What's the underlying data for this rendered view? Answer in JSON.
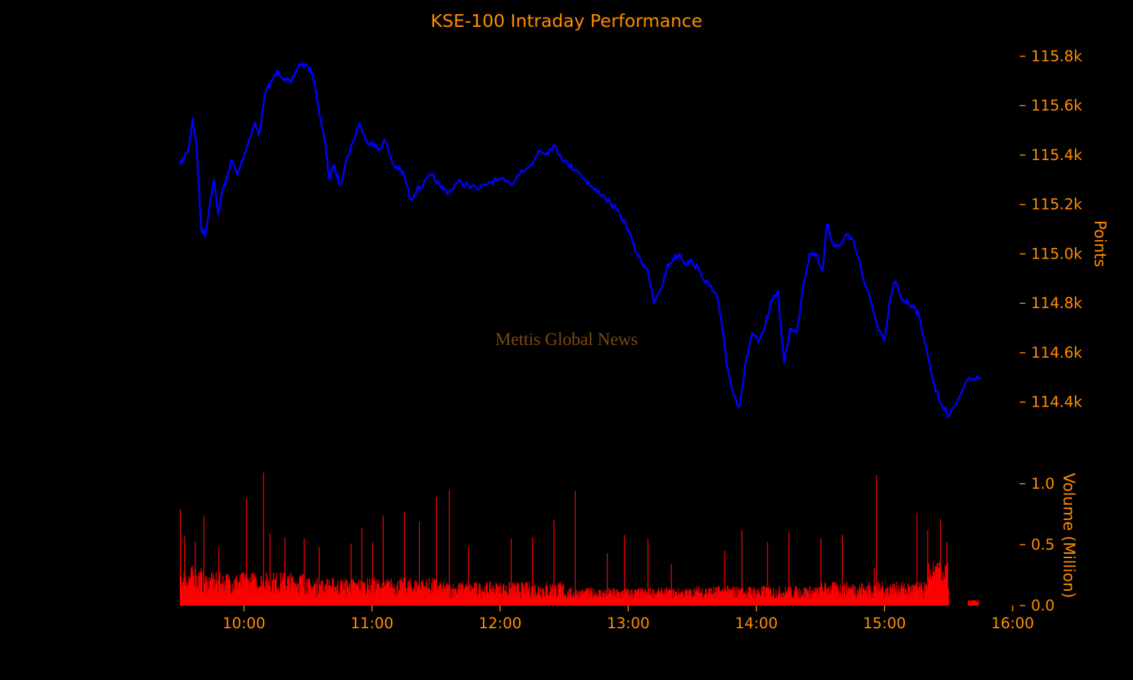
{
  "colors": {
    "background": "#000000",
    "text": "#FF8C00",
    "price_line": "#0000FF",
    "volume_bars": "#FF0000",
    "watermark": "#7A4A12"
  },
  "watermark": "Mettis Global News",
  "chart_data": [
    {
      "type": "line",
      "title": "KSE-100 Intraday Performance",
      "ylabel": "Points",
      "ylim": [
        114250,
        115850
      ],
      "y_ticks": [
        114400,
        114600,
        114800,
        115000,
        115200,
        115400,
        115600,
        115800
      ],
      "y_tick_labels": [
        "114.4k",
        "114.6k",
        "114.8k",
        "115.0k",
        "115.2k",
        "115.4k",
        "115.6k",
        "115.8k"
      ],
      "y_axis_side": "right",
      "grid": false,
      "series": [
        {
          "x": [
            "09:30",
            "09:34",
            "09:36",
            "09:38",
            "09:40",
            "09:42",
            "09:44",
            "09:46",
            "09:48",
            "09:50",
            "09:52",
            "09:54",
            "09:57",
            "10:00",
            "10:02",
            "10:05",
            "10:07",
            "10:10",
            "10:13",
            "10:16",
            "10:19",
            "10:22",
            "10:26",
            "10:30",
            "10:33",
            "10:35",
            "10:38",
            "10:40",
            "10:42",
            "10:45",
            "10:48",
            "10:51",
            "10:54",
            "10:57",
            "11:00",
            "11:03",
            "11:06",
            "11:10",
            "11:13",
            "11:15",
            "11:18",
            "11:21",
            "11:24",
            "11:28",
            "11:32",
            "11:36",
            "11:40",
            "11:45",
            "11:50",
            "11:55",
            "12:00",
            "12:05",
            "12:10",
            "12:15",
            "12:18",
            "12:22",
            "12:25",
            "12:28",
            "12:32",
            "12:36",
            "12:40",
            "12:44",
            "12:48",
            "12:52",
            "12:56",
            "13:00",
            "13:03",
            "13:06",
            "13:09",
            "13:12",
            "13:15",
            "13:18",
            "13:21",
            "13:24",
            "13:27",
            "13:30",
            "13:34",
            "13:38",
            "13:42",
            "13:46",
            "13:49",
            "13:52",
            "13:55",
            "13:58",
            "14:01",
            "14:04",
            "14:07",
            "14:10",
            "14:13",
            "14:16",
            "14:19",
            "14:22",
            "14:25",
            "14:28",
            "14:31",
            "14:33",
            "14:36",
            "14:39",
            "14:42",
            "14:45",
            "14:48",
            "14:51",
            "14:54",
            "14:57",
            "15:00",
            "15:03",
            "15:05",
            "15:08",
            "15:11",
            "15:14",
            "15:17",
            "15:20",
            "15:23",
            "15:26",
            "15:29",
            "15:30",
            "15:40",
            "15:45"
          ],
          "y": [
            115360,
            115420,
            115550,
            115420,
            115100,
            115080,
            115200,
            115300,
            115160,
            115260,
            115300,
            115380,
            115320,
            115400,
            115450,
            115530,
            115480,
            115650,
            115700,
            115740,
            115710,
            115690,
            115770,
            115760,
            115700,
            115590,
            115450,
            115300,
            115360,
            115280,
            115380,
            115450,
            115530,
            115460,
            115450,
            115420,
            115460,
            115360,
            115340,
            115320,
            115220,
            115260,
            115280,
            115320,
            115270,
            115250,
            115290,
            115280,
            115260,
            115290,
            115300,
            115280,
            115340,
            115360,
            115420,
            115410,
            115440,
            115400,
            115360,
            115340,
            115300,
            115260,
            115240,
            115200,
            115160,
            115100,
            115020,
            114970,
            114940,
            114800,
            114850,
            114940,
            114980,
            115000,
            114960,
            114970,
            114920,
            114870,
            114820,
            114560,
            114440,
            114380,
            114560,
            114680,
            114640,
            114700,
            114810,
            114850,
            114560,
            114700,
            114680,
            114880,
            115000,
            115000,
            114930,
            115120,
            115040,
            115030,
            115080,
            115060,
            114980,
            114870,
            114800,
            114690,
            114650,
            114830,
            114890,
            114820,
            114800,
            114790,
            114720,
            114600,
            114480,
            114400,
            114360,
            114340,
            114500,
            114500
          ]
        }
      ]
    },
    {
      "type": "bar",
      "ylabel": "Volume (Million)",
      "ylim": [
        0,
        1.15
      ],
      "y_ticks": [
        0.0,
        0.5,
        1.0
      ],
      "y_tick_labels": [
        "0.0",
        "0.5",
        "1.0"
      ],
      "y_axis_side": "right",
      "x_ticks": [
        "10:00",
        "11:00",
        "12:00",
        "13:00",
        "14:00",
        "15:00",
        "16:00"
      ],
      "x_tick_labels": [
        "10:00",
        "11:00",
        "12:00",
        "13:00",
        "14:00",
        "15:00",
        "16:00"
      ],
      "xlim": [
        "09:30",
        "16:00"
      ],
      "grid": false,
      "series": [
        {
          "baseline": [
            {
              "from": "09:30",
              "to": "09:40",
              "value": 0.2
            },
            {
              "from": "09:40",
              "to": "10:30",
              "value": 0.17
            },
            {
              "from": "10:30",
              "to": "11:30",
              "value": 0.14
            },
            {
              "from": "11:30",
              "to": "12:30",
              "value": 0.12
            },
            {
              "from": "12:30",
              "to": "13:30",
              "value": 0.09
            },
            {
              "from": "13:30",
              "to": "14:30",
              "value": 0.1
            },
            {
              "from": "14:30",
              "to": "15:20",
              "value": 0.12
            },
            {
              "from": "15:20",
              "to": "15:30",
              "value": 0.22
            },
            {
              "from": "15:39",
              "to": "15:44",
              "value": 0.03
            }
          ],
          "spikes": [
            {
              "x": "09:30",
              "v": 0.79
            },
            {
              "x": "09:32",
              "v": 0.57
            },
            {
              "x": "09:37",
              "v": 0.52
            },
            {
              "x": "09:41",
              "v": 0.74
            },
            {
              "x": "09:48",
              "v": 0.48
            },
            {
              "x": "10:01",
              "v": 0.88
            },
            {
              "x": "10:09",
              "v": 1.09
            },
            {
              "x": "10:12",
              "v": 0.59
            },
            {
              "x": "10:19",
              "v": 0.56
            },
            {
              "x": "10:28",
              "v": 0.55
            },
            {
              "x": "10:35",
              "v": 0.48
            },
            {
              "x": "10:50",
              "v": 0.51
            },
            {
              "x": "10:55",
              "v": 0.64
            },
            {
              "x": "11:00",
              "v": 0.52
            },
            {
              "x": "11:05",
              "v": 0.74
            },
            {
              "x": "11:15",
              "v": 0.77
            },
            {
              "x": "11:22",
              "v": 0.69
            },
            {
              "x": "11:30",
              "v": 0.89
            },
            {
              "x": "11:36",
              "v": 0.95
            },
            {
              "x": "11:45",
              "v": 0.48
            },
            {
              "x": "12:05",
              "v": 0.55
            },
            {
              "x": "12:15",
              "v": 0.56
            },
            {
              "x": "12:25",
              "v": 0.7
            },
            {
              "x": "12:35",
              "v": 0.94
            },
            {
              "x": "12:50",
              "v": 0.43
            },
            {
              "x": "12:58",
              "v": 0.58
            },
            {
              "x": "13:09",
              "v": 0.55
            },
            {
              "x": "13:20",
              "v": 0.34
            },
            {
              "x": "13:45",
              "v": 0.45
            },
            {
              "x": "13:53",
              "v": 0.62
            },
            {
              "x": "14:05",
              "v": 0.52
            },
            {
              "x": "14:15",
              "v": 0.61
            },
            {
              "x": "14:30",
              "v": 0.55
            },
            {
              "x": "14:40",
              "v": 0.58
            },
            {
              "x": "14:55",
              "v": 0.31
            },
            {
              "x": "14:56",
              "v": 1.07
            },
            {
              "x": "15:15",
              "v": 0.76
            },
            {
              "x": "15:20",
              "v": 0.62
            },
            {
              "x": "15:26",
              "v": 0.71
            },
            {
              "x": "15:29",
              "v": 0.52
            }
          ]
        }
      ]
    }
  ]
}
